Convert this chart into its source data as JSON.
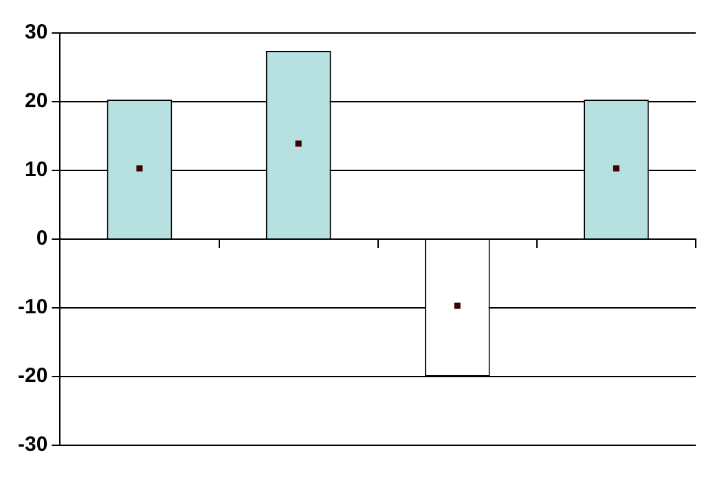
{
  "chart_data": {
    "type": "bar",
    "categories": [
      null,
      null,
      null,
      null
    ],
    "ylim": [
      -30,
      30
    ],
    "yticks": [
      -30,
      -20,
      -10,
      0,
      10,
      20,
      30
    ],
    "grid": "y",
    "marker": "square",
    "series": [
      {
        "colors": [
          "#b7e0e0",
          "#b7e0e0",
          "#ffffff",
          "#b7e0e0"
        ],
        "values": [
          20.3,
          27.4,
          -20,
          20.3
        ]
      },
      {
        "type": "scatter",
        "color": "#400000",
        "values": [
          10.3,
          13.9,
          -9.7,
          10.3
        ]
      }
    ]
  }
}
